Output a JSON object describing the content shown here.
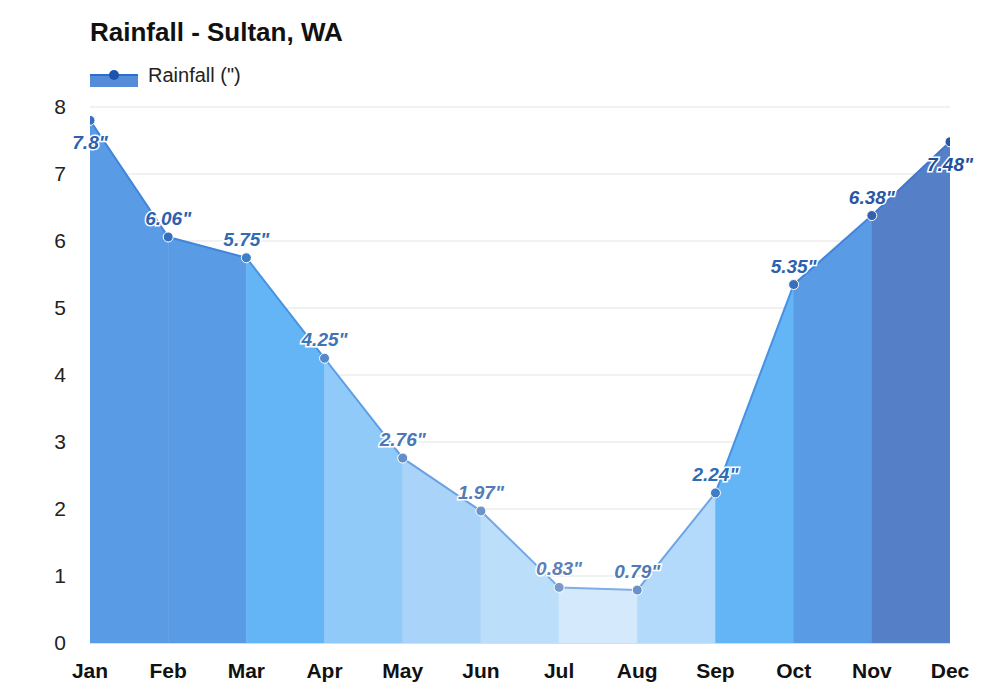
{
  "chart_data": {
    "type": "area",
    "title": "Rainfall - Sultan, WA",
    "categories": [
      "Jan",
      "Feb",
      "Mar",
      "Apr",
      "May",
      "Jun",
      "Jul",
      "Aug",
      "Sep",
      "Oct",
      "Nov",
      "Dec"
    ],
    "series": [
      {
        "name": "Rainfall (\")",
        "color": "#2a6fd0",
        "values": [
          7.8,
          6.06,
          5.75,
          4.25,
          2.76,
          1.97,
          0.83,
          0.79,
          2.24,
          5.35,
          6.38,
          7.48
        ],
        "value_labels": [
          "7.8\"",
          "6.06\"",
          "5.75\"",
          "4.25\"",
          "2.76\"",
          "1.97\"",
          "0.83\"",
          "0.79\"",
          "2.24\"",
          "5.35\"",
          "6.38\"",
          "7.48\""
        ]
      }
    ],
    "colors": [
      "#5a9be6",
      "#5a9be6",
      "#64b5f6",
      "#90caf9",
      "#a9d3f8",
      "#bbdefb",
      "#d4eafc",
      "#b3dafa",
      "#64b5f6",
      "#5a9be6",
      "#5580c8",
      "#3f6fb8"
    ],
    "ylim": [
      0,
      8
    ],
    "yticks": [
      0,
      1,
      2,
      3,
      4,
      5,
      6,
      7,
      8
    ],
    "grid": true,
    "legend": "top-left",
    "data_labels": true,
    "marker": "circle"
  }
}
